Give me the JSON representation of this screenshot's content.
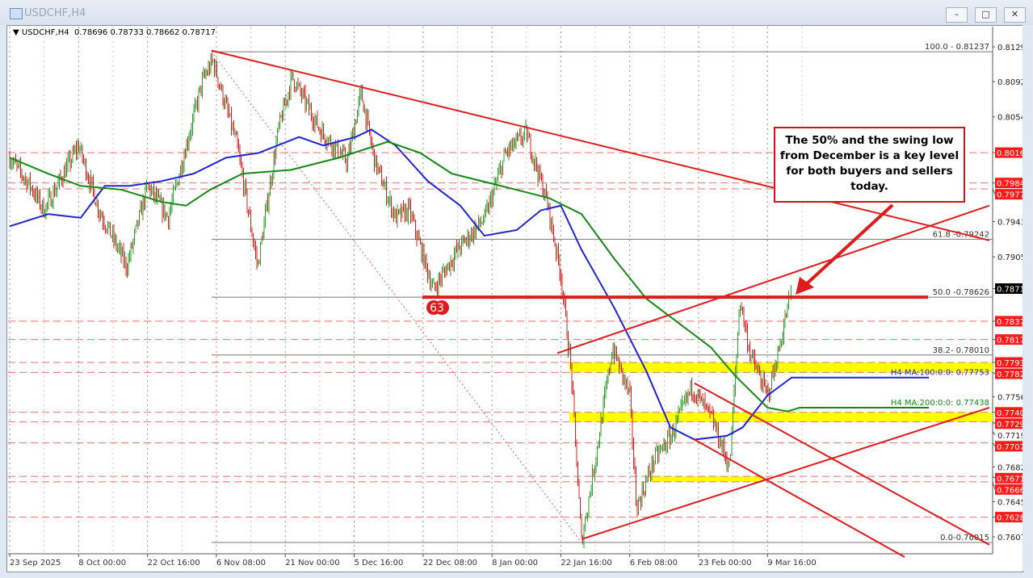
{
  "window": {
    "title": "USDCHF,H4",
    "buttons": [
      "minimize",
      "restore",
      "close"
    ]
  },
  "legend": {
    "symbol": "USDCHF,H4",
    "open": "0.78696",
    "high": "0.78733",
    "low": "0.78662",
    "close": "0.78717"
  },
  "callout": "The 50% and the swing low from December is a key level for both buyers and sellers today.",
  "label_63": "63",
  "chart_data": {
    "type": "candlestick",
    "x_tick_labels": [
      "23 Sep 2025",
      "8 Oct 00:00",
      "22 Oct 16:00",
      "6 Nov 08:00",
      "21 Nov 00:00",
      "5 Dec 16:00",
      "22 Dec 08:00",
      "8 Jan 00:00",
      "22 Jan 16:00",
      "6 Feb 08:00",
      "23 Feb 00:00",
      "9 Mar 16:00"
    ],
    "y_tick_labels": [
      "0.81290",
      "0.80920",
      "0.80545",
      "0.79430",
      "0.79055",
      "0.77565",
      "0.77195",
      "0.76820",
      "0.76450",
      "0.76075"
    ],
    "ylim": [
      0.759,
      0.815
    ],
    "last_price": "0.78717",
    "price_path": [
      [
        0,
        0.8011
      ],
      [
        0.3,
        0.7981
      ],
      [
        0.5,
        0.7955
      ],
      [
        1.0,
        0.8024
      ],
      [
        1.3,
        0.7955
      ],
      [
        1.7,
        0.7895
      ],
      [
        2.0,
        0.7981
      ],
      [
        2.3,
        0.7947
      ],
      [
        2.8,
        0.8093
      ],
      [
        2.95,
        0.8114
      ],
      [
        3.3,
        0.8024
      ],
      [
        3.6,
        0.7895
      ],
      [
        3.9,
        0.8041
      ],
      [
        4.1,
        0.8097
      ],
      [
        4.5,
        0.8041
      ],
      [
        4.9,
        0.8007
      ],
      [
        5.1,
        0.808
      ],
      [
        5.3,
        0.8007
      ],
      [
        5.6,
        0.7947
      ],
      [
        5.8,
        0.7955
      ],
      [
        6.15,
        0.787
      ],
      [
        6.5,
        0.7913
      ],
      [
        6.9,
        0.7947
      ],
      [
        7.2,
        0.8016
      ],
      [
        7.5,
        0.8037
      ],
      [
        7.8,
        0.7964
      ],
      [
        8.0,
        0.7887
      ],
      [
        8.15,
        0.7784
      ],
      [
        8.3,
        0.7602
      ],
      [
        8.5,
        0.7689
      ],
      [
        8.75,
        0.7809
      ],
      [
        9.0,
        0.7758
      ],
      [
        9.1,
        0.7638
      ],
      [
        9.35,
        0.7689
      ],
      [
        9.6,
        0.7715
      ],
      [
        9.9,
        0.7767
      ],
      [
        10.2,
        0.7732
      ],
      [
        10.45,
        0.7681
      ],
      [
        10.6,
        0.7861
      ],
      [
        10.75,
        0.7801
      ],
      [
        11.0,
        0.7758
      ],
      [
        11.15,
        0.7801
      ],
      [
        11.35,
        0.7872
      ]
    ],
    "ma100": {
      "label": "H4 MA:100:0:0: 0.77753",
      "color": "#1f25d6",
      "points": [
        [
          0,
          0.7938
        ],
        [
          0.56,
          0.7951
        ],
        [
          1.03,
          0.7947
        ],
        [
          1.38,
          0.7981
        ],
        [
          1.74,
          0.7981
        ],
        [
          2.2,
          0.7986
        ],
        [
          2.67,
          0.7994
        ],
        [
          3.14,
          0.8011
        ],
        [
          3.61,
          0.8016
        ],
        [
          4.2,
          0.8033
        ],
        [
          4.55,
          0.8024
        ],
        [
          5.02,
          0.8033
        ],
        [
          5.25,
          0.8041
        ],
        [
          5.6,
          0.8024
        ],
        [
          6.07,
          0.7986
        ],
        [
          6.54,
          0.796
        ],
        [
          6.89,
          0.7928
        ],
        [
          7.36,
          0.7934
        ],
        [
          7.71,
          0.7955
        ],
        [
          8.0,
          0.796
        ],
        [
          8.3,
          0.7913
        ],
        [
          8.77,
          0.7852
        ],
        [
          9.24,
          0.7784
        ],
        [
          9.59,
          0.7724
        ],
        [
          9.94,
          0.7711
        ],
        [
          10.41,
          0.7715
        ],
        [
          10.64,
          0.7724
        ],
        [
          11.0,
          0.7758
        ],
        [
          11.35,
          0.7777
        ],
        [
          11.58,
          0.7777
        ]
      ]
    },
    "ma200": {
      "label": "H4 MA:200:0:0: 0.77438",
      "color": "#138a13",
      "points": [
        [
          0,
          0.8011
        ],
        [
          0.56,
          0.7994
        ],
        [
          1.03,
          0.7981
        ],
        [
          1.62,
          0.7977
        ],
        [
          2.2,
          0.7964
        ],
        [
          2.56,
          0.796
        ],
        [
          2.91,
          0.7977
        ],
        [
          3.38,
          0.7994
        ],
        [
          4.08,
          0.7998
        ],
        [
          4.78,
          0.8011
        ],
        [
          5.49,
          0.8028
        ],
        [
          5.96,
          0.8016
        ],
        [
          6.42,
          0.7994
        ],
        [
          7.13,
          0.7981
        ],
        [
          7.83,
          0.7968
        ],
        [
          8.3,
          0.7951
        ],
        [
          8.77,
          0.7904
        ],
        [
          9.24,
          0.7861
        ],
        [
          9.71,
          0.7835
        ],
        [
          10.18,
          0.7809
        ],
        [
          10.53,
          0.7779
        ],
        [
          11.0,
          0.7745
        ],
        [
          11.29,
          0.7741
        ],
        [
          11.47,
          0.7745
        ]
      ]
    },
    "fibonacci": [
      {
        "label": "100.0 - 0.81237",
        "price": 0.81237
      },
      {
        "label": "61.8 -0.79242",
        "price": 0.79242
      },
      {
        "label": "50.0 -0.78626",
        "price": 0.78626
      },
      {
        "label": "38.2- 0.78010",
        "price": 0.7801
      },
      {
        "label": "0.0-0.76015",
        "price": 0.76015
      }
    ],
    "levels": [
      "0.80164",
      "0.79841",
      "0.79778",
      "0.78370",
      "0.78175",
      "0.77931",
      "0.77825",
      "0.77400",
      "0.77298",
      "0.77075",
      "0.76719",
      "0.76661",
      "0.76285"
    ],
    "zones": [
      [
        0.77931,
        0.77825
      ],
      [
        0.774,
        0.77298
      ],
      [
        0.76719,
        0.76661
      ]
    ],
    "key_level": 0.78626,
    "trendlines": [
      [
        [
          2.93,
          0.8125
        ],
        [
          14.22,
          0.7923
        ]
      ],
      [
        [
          7.95,
          0.7803
        ],
        [
          14.22,
          0.796
        ]
      ],
      [
        [
          8.3,
          0.7605
        ],
        [
          14.22,
          0.7745
        ]
      ],
      [
        [
          9.94,
          0.7771
        ],
        [
          14.22,
          0.7599
        ]
      ],
      [
        [
          9.94,
          0.7711
        ],
        [
          12.99,
          0.7586
        ]
      ]
    ],
    "colors": {
      "up": "#2e9e2e",
      "down": "#d62020",
      "annotation": "#e01b1b",
      "zone": "#ffff00",
      "last_price_bg": "#000000"
    }
  }
}
